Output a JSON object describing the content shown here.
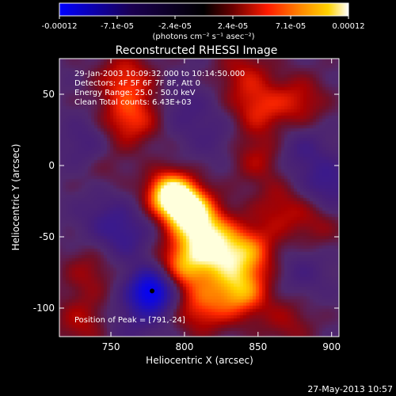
{
  "colorbar": {
    "tick_labels": [
      "-0.00012",
      "-7.1e-05",
      "-2.4e-05",
      "2.4e-05",
      "7.1e-05",
      "0.00012"
    ],
    "units": "(photons cm⁻² s⁻¹ asec⁻²)",
    "colors": [
      "#0000ff",
      "#1a0050",
      "#000000",
      "#6a0000",
      "#ff1a00",
      "#ff8c00",
      "#ffd200",
      "#ffffff"
    ]
  },
  "footer_date": "27-May-2013 10:57",
  "chart_data": {
    "type": "heatmap",
    "title": "Reconstructed RHESSI Image",
    "xlabel": "Heliocentric X (arcsec)",
    "ylabel": "Heliocentric Y (arcsec)",
    "xlim": [
      715,
      905
    ],
    "ylim": [
      -120,
      75
    ],
    "x_ticks": [
      750,
      800,
      850,
      900
    ],
    "y_ticks": [
      50,
      0,
      -50,
      -100
    ],
    "value_range": [
      -0.00012,
      0.00012
    ],
    "annotations": [
      "29-Jan-2003 10:09:32.000 to 10:14:50.000",
      "Detectors: 4F 5F 6F 7F 8F, Att 0",
      "Energy Range: 25.0 - 50.0 keV",
      "Clean    Total counts: 6.43E+03"
    ],
    "peak_label": "Position of Peak = [791,-24]",
    "peak": [
      791,
      -24
    ],
    "blobs": [
      {
        "x": 790,
        "y": -20,
        "v": 1.0
      },
      {
        "x": 802,
        "y": -30,
        "v": 0.85
      },
      {
        "x": 812,
        "y": -45,
        "v": 0.7
      },
      {
        "x": 800,
        "y": -70,
        "v": 0.65
      },
      {
        "x": 825,
        "y": -62,
        "v": 0.6
      },
      {
        "x": 838,
        "y": -88,
        "v": 0.7
      },
      {
        "x": 845,
        "y": -60,
        "v": 0.5
      },
      {
        "x": 812,
        "y": -100,
        "v": 0.45
      },
      {
        "x": 760,
        "y": 60,
        "v": 0.45
      },
      {
        "x": 758,
        "y": 30,
        "v": 0.3
      },
      {
        "x": 770,
        "y": 35,
        "v": 0.25
      },
      {
        "x": 850,
        "y": 40,
        "v": 0.4
      },
      {
        "x": 878,
        "y": 45,
        "v": 0.35
      },
      {
        "x": 850,
        "y": 5,
        "v": 0.3
      },
      {
        "x": 865,
        "y": -30,
        "v": 0.3
      },
      {
        "x": 735,
        "y": -75,
        "v": 0.25
      },
      {
        "x": 730,
        "y": -110,
        "v": 0.3
      },
      {
        "x": 890,
        "y": -40,
        "v": 0.25
      },
      {
        "x": 870,
        "y": -110,
        "v": 0.25
      },
      {
        "x": 745,
        "y": 0,
        "v": 0.15
      },
      {
        "x": 840,
        "y": 65,
        "v": 0.3
      },
      {
        "x": 778,
        "y": -88,
        "v": -1.0
      },
      {
        "x": 898,
        "y": -15,
        "v": -0.35
      },
      {
        "x": 735,
        "y": 15,
        "v": -0.25
      },
      {
        "x": 760,
        "y": -50,
        "v": -0.3
      },
      {
        "x": 880,
        "y": 10,
        "v": -0.25
      },
      {
        "x": 745,
        "y": -35,
        "v": -0.2
      },
      {
        "x": 800,
        "y": 40,
        "v": -0.2
      },
      {
        "x": 880,
        "y": -75,
        "v": -0.2
      },
      {
        "x": 765,
        "y": -110,
        "v": -0.2
      },
      {
        "x": 820,
        "y": 20,
        "v": -0.15
      }
    ]
  }
}
